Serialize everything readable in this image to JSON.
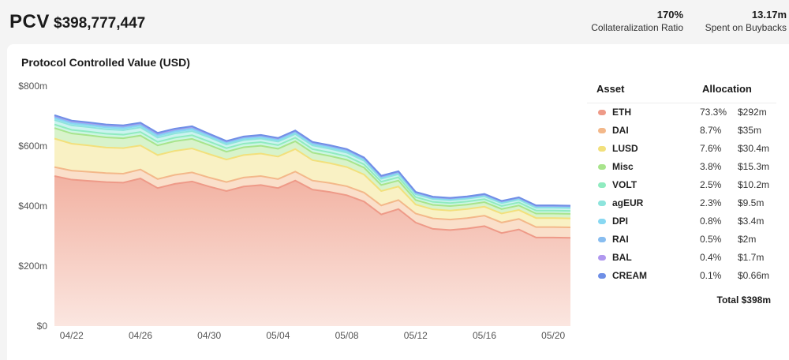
{
  "header": {
    "pcv_label": "PCV",
    "pcv_value": "$398,777,447",
    "collateralization_value": "170%",
    "collateralization_label": "Collateralization Ratio",
    "buybacks_value": "13.17m",
    "buybacks_label": "Spent on Buybacks"
  },
  "chart_data": {
    "type": "area",
    "title": "Protocol Controlled Value (USD)",
    "stacked": true,
    "grid": false,
    "ylim": [
      0,
      800
    ],
    "y_unit": "m",
    "y_ticks": [
      "$0",
      "$200m",
      "$400m",
      "$600m",
      "$800m"
    ],
    "x_tick_labels": [
      "04/22",
      "04/26",
      "04/30",
      "05/04",
      "05/08",
      "05/12",
      "05/16",
      "05/20"
    ],
    "x": [
      "04/21",
      "04/22",
      "04/23",
      "04/24",
      "04/25",
      "04/26",
      "04/27",
      "04/28",
      "04/29",
      "04/30",
      "05/01",
      "05/02",
      "05/03",
      "05/04",
      "05/05",
      "05/06",
      "05/07",
      "05/08",
      "05/09",
      "05/10",
      "05/11",
      "05/12",
      "05/13",
      "05/14",
      "05/15",
      "05/16",
      "05/17",
      "05/18",
      "05/19",
      "05/20",
      "05/21"
    ],
    "series": [
      {
        "name": "ETH",
        "color": "#ee9a88",
        "values": [
          500,
          488,
          484,
          480,
          478,
          492,
          460,
          474,
          482,
          465,
          450,
          465,
          470,
          460,
          485,
          455,
          447,
          436,
          415,
          372,
          390,
          345,
          324,
          320,
          325,
          333,
          310,
          322,
          295,
          295,
          294
        ]
      },
      {
        "name": "DAI",
        "color": "#f3b88a",
        "values": [
          30,
          30,
          30,
          30,
          30,
          30,
          30,
          30,
          30,
          30,
          30,
          30,
          30,
          30,
          30,
          30,
          30,
          30,
          30,
          30,
          30,
          30,
          35,
          35,
          35,
          35,
          35,
          35,
          35,
          35,
          35
        ]
      },
      {
        "name": "LUSD",
        "color": "#f2e07c",
        "values": [
          95,
          90,
          88,
          85,
          85,
          80,
          80,
          80,
          80,
          78,
          75,
          75,
          75,
          75,
          75,
          68,
          66,
          64,
          60,
          48,
          45,
          30,
          30,
          30,
          30,
          30,
          30,
          30,
          30,
          30,
          30
        ]
      },
      {
        "name": "Misc",
        "color": "#a8e48c",
        "values": [
          35,
          34,
          34,
          34,
          33,
          33,
          32,
          32,
          32,
          30,
          26,
          26,
          26,
          26,
          26,
          25,
          24,
          24,
          23,
          20,
          20,
          15,
          15,
          15,
          15,
          15,
          15,
          15,
          15,
          15,
          15
        ]
      },
      {
        "name": "VOLT",
        "color": "#90ebc0",
        "values": [
          12,
          12,
          12,
          12,
          12,
          12,
          12,
          12,
          12,
          12,
          12,
          12,
          12,
          12,
          12,
          12,
          12,
          12,
          11,
          11,
          11,
          10,
          10,
          10,
          10,
          10,
          10,
          10,
          10,
          10,
          10
        ]
      },
      {
        "name": "agEUR",
        "color": "#8de4dc",
        "values": [
          15,
          15,
          15,
          15,
          15,
          15,
          14,
          14,
          14,
          14,
          12,
          12,
          12,
          12,
          12,
          12,
          12,
          12,
          12,
          10,
          10,
          9.5,
          9.5,
          9.5,
          9.5,
          9.5,
          9.5,
          9.5,
          9.5,
          9.5,
          9.5
        ]
      },
      {
        "name": "DPI",
        "color": "#88d8f2",
        "values": [
          6,
          6,
          6,
          6,
          6,
          6,
          6,
          6,
          6,
          5,
          5,
          5,
          5,
          5,
          5,
          5,
          5,
          5,
          5,
          4,
          4,
          3.4,
          3.4,
          3.4,
          3.4,
          3.4,
          3.4,
          3.4,
          3.4,
          3.4,
          3.4
        ]
      },
      {
        "name": "RAI",
        "color": "#88bdf0",
        "values": [
          5,
          5,
          5,
          5,
          5,
          5,
          5,
          5,
          5,
          4,
          4,
          4,
          4,
          4,
          4,
          4,
          4,
          4,
          3,
          3,
          3,
          2,
          2,
          2,
          2,
          2,
          2,
          2,
          2,
          2,
          2
        ]
      },
      {
        "name": "BAL",
        "color": "#b098ef",
        "values": [
          3,
          3,
          3,
          3,
          3,
          3,
          3,
          3,
          3,
          2,
          2,
          2,
          2,
          2,
          2,
          2,
          2,
          2,
          2,
          2,
          2,
          1.7,
          1.7,
          1.7,
          1.7,
          1.7,
          1.7,
          1.7,
          1.7,
          1.7,
          1.7
        ]
      },
      {
        "name": "CREAM",
        "color": "#6f8fe6",
        "values": [
          2,
          2,
          2,
          2,
          2,
          2,
          2,
          2,
          2,
          1,
          1,
          1,
          1,
          1,
          1,
          1,
          1,
          1,
          1,
          1,
          1,
          0.66,
          0.66,
          0.66,
          0.66,
          0.66,
          0.66,
          0.66,
          0.66,
          0.66,
          0.66
        ]
      }
    ]
  },
  "legend": {
    "asset_header": "Asset",
    "allocation_header": "Allocation",
    "rows": [
      {
        "name": "ETH",
        "pct": "73.3%",
        "amount": "$292m"
      },
      {
        "name": "DAI",
        "pct": "8.7%",
        "amount": "$35m"
      },
      {
        "name": "LUSD",
        "pct": "7.6%",
        "amount": "$30.4m"
      },
      {
        "name": "Misc",
        "pct": "3.8%",
        "amount": "$15.3m"
      },
      {
        "name": "VOLT",
        "pct": "2.5%",
        "amount": "$10.2m"
      },
      {
        "name": "agEUR",
        "pct": "2.3%",
        "amount": "$9.5m"
      },
      {
        "name": "DPI",
        "pct": "0.8%",
        "amount": "$3.4m"
      },
      {
        "name": "RAI",
        "pct": "0.5%",
        "amount": "$2m"
      },
      {
        "name": "BAL",
        "pct": "0.4%",
        "amount": "$1.7m"
      },
      {
        "name": "CREAM",
        "pct": "0.1%",
        "amount": "$0.66m"
      }
    ],
    "total": "Total $398m"
  }
}
